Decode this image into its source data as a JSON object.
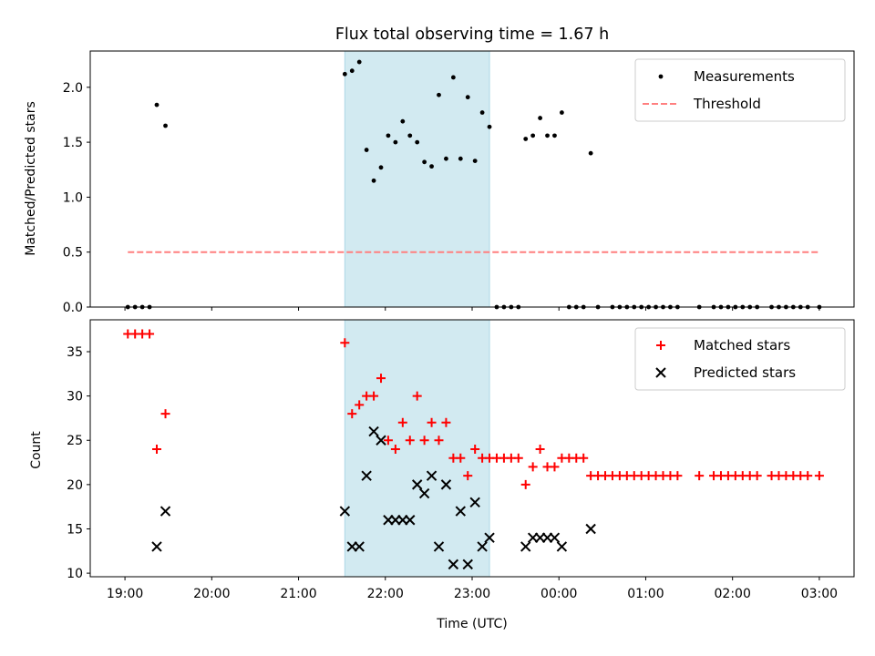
{
  "title": "Flux total observing time = 1.67 h",
  "shaded_interval": {
    "start": "21:32",
    "end": "23:12",
    "color": "#add8e6"
  },
  "chart_data": [
    {
      "type": "scatter",
      "ylabel": "Matched/Predicted stars",
      "ylim": [
        0,
        2.33
      ],
      "yticks": [
        0.0,
        0.5,
        1.0,
        1.5,
        2.0
      ],
      "ytick_labels": [
        "0.0",
        "0.5",
        "1.0",
        "1.5",
        "2.0"
      ],
      "grid": false,
      "legend": {
        "placement": "top-right"
      },
      "series": [
        {
          "name": "Measurements",
          "kind": "points",
          "color": "#000000",
          "points": [
            [
              "19:02",
              0
            ],
            [
              "19:07",
              0
            ],
            [
              "19:12",
              0
            ],
            [
              "19:17",
              0
            ],
            [
              "19:22",
              1.84
            ],
            [
              "19:28",
              1.65
            ],
            [
              "21:32",
              2.12
            ],
            [
              "21:37",
              2.15
            ],
            [
              "21:42",
              2.23
            ],
            [
              "21:47",
              1.43
            ],
            [
              "21:52",
              1.15
            ],
            [
              "21:57",
              1.27
            ],
            [
              "22:02",
              1.56
            ],
            [
              "22:07",
              1.5
            ],
            [
              "22:12",
              1.69
            ],
            [
              "22:17",
              1.56
            ],
            [
              "22:22",
              1.5
            ],
            [
              "22:27",
              1.32
            ],
            [
              "22:32",
              1.28
            ],
            [
              "22:37",
              1.93
            ],
            [
              "22:42",
              1.35
            ],
            [
              "22:47",
              2.09
            ],
            [
              "22:52",
              1.35
            ],
            [
              "22:57",
              1.91
            ],
            [
              "23:02",
              1.33
            ],
            [
              "23:07",
              1.77
            ],
            [
              "23:12",
              1.64
            ],
            [
              "23:17",
              0
            ],
            [
              "23:22",
              0
            ],
            [
              "23:27",
              0
            ],
            [
              "23:32",
              0
            ],
            [
              "23:37",
              1.53
            ],
            [
              "23:42",
              1.56
            ],
            [
              "23:47",
              1.72
            ],
            [
              "23:52",
              1.56
            ],
            [
              "23:57",
              1.56
            ],
            [
              "00:02",
              1.77
            ],
            [
              "00:07",
              0
            ],
            [
              "00:12",
              0
            ],
            [
              "00:17",
              0
            ],
            [
              "00:22",
              1.4
            ],
            [
              "00:27",
              0
            ],
            [
              "00:37",
              0
            ],
            [
              "00:42",
              0
            ],
            [
              "00:47",
              0
            ],
            [
              "00:52",
              0
            ],
            [
              "00:57",
              0
            ],
            [
              "01:02",
              0
            ],
            [
              "01:07",
              0
            ],
            [
              "01:12",
              0
            ],
            [
              "01:17",
              0
            ],
            [
              "01:22",
              0
            ],
            [
              "01:37",
              0
            ],
            [
              "01:47",
              0
            ],
            [
              "01:52",
              0
            ],
            [
              "01:57",
              0
            ],
            [
              "02:02",
              0
            ],
            [
              "02:07",
              0
            ],
            [
              "02:12",
              0
            ],
            [
              "02:17",
              0
            ],
            [
              "02:27",
              0
            ],
            [
              "02:32",
              0
            ],
            [
              "02:37",
              0
            ],
            [
              "02:42",
              0
            ],
            [
              "02:47",
              0
            ],
            [
              "02:52",
              0
            ],
            [
              "03:00",
              0
            ]
          ]
        },
        {
          "name": "Threshold",
          "kind": "dashed-line",
          "color": "#ff7f7f",
          "points": [
            [
              "19:02",
              0.5
            ],
            [
              "03:00",
              0.5
            ]
          ]
        }
      ]
    },
    {
      "type": "scatter",
      "xlabel": "Time (UTC)",
      "ylabel": "Count",
      "ylim": [
        9.6,
        38.6
      ],
      "yticks": [
        10,
        15,
        20,
        25,
        30,
        35
      ],
      "ytick_labels": [
        "10",
        "15",
        "20",
        "25",
        "30",
        "35"
      ],
      "xticks": [
        "19:00",
        "20:00",
        "21:00",
        "22:00",
        "23:00",
        "00:00",
        "01:00",
        "02:00",
        "03:00"
      ],
      "xlim": [
        "18:36",
        "03:24"
      ],
      "grid": false,
      "legend": {
        "placement": "top-right"
      },
      "series": [
        {
          "name": "Matched stars",
          "kind": "plus",
          "color": "#ff0000",
          "points": [
            [
              "19:02",
              37
            ],
            [
              "19:07",
              37
            ],
            [
              "19:12",
              37
            ],
            [
              "19:17",
              37
            ],
            [
              "19:22",
              24
            ],
            [
              "19:28",
              28
            ],
            [
              "21:32",
              36
            ],
            [
              "21:37",
              28
            ],
            [
              "21:42",
              29
            ],
            [
              "21:47",
              30
            ],
            [
              "21:52",
              30
            ],
            [
              "21:57",
              32
            ],
            [
              "22:02",
              25
            ],
            [
              "22:07",
              24
            ],
            [
              "22:12",
              27
            ],
            [
              "22:17",
              25
            ],
            [
              "22:22",
              30
            ],
            [
              "22:27",
              25
            ],
            [
              "22:32",
              27
            ],
            [
              "22:37",
              25
            ],
            [
              "22:42",
              27
            ],
            [
              "22:47",
              23
            ],
            [
              "22:52",
              23
            ],
            [
              "22:57",
              21
            ],
            [
              "23:02",
              24
            ],
            [
              "23:07",
              23
            ],
            [
              "23:12",
              23
            ],
            [
              "23:17",
              23
            ],
            [
              "23:22",
              23
            ],
            [
              "23:27",
              23
            ],
            [
              "23:32",
              23
            ],
            [
              "23:37",
              20
            ],
            [
              "23:42",
              22
            ],
            [
              "23:47",
              24
            ],
            [
              "23:52",
              22
            ],
            [
              "23:57",
              22
            ],
            [
              "00:02",
              23
            ],
            [
              "00:07",
              23
            ],
            [
              "00:12",
              23
            ],
            [
              "00:17",
              23
            ],
            [
              "00:22",
              21
            ],
            [
              "00:27",
              21
            ],
            [
              "00:32",
              21
            ],
            [
              "00:37",
              21
            ],
            [
              "00:42",
              21
            ],
            [
              "00:47",
              21
            ],
            [
              "00:52",
              21
            ],
            [
              "00:57",
              21
            ],
            [
              "01:02",
              21
            ],
            [
              "01:07",
              21
            ],
            [
              "01:12",
              21
            ],
            [
              "01:17",
              21
            ],
            [
              "01:22",
              21
            ],
            [
              "01:37",
              21
            ],
            [
              "01:47",
              21
            ],
            [
              "01:52",
              21
            ],
            [
              "01:57",
              21
            ],
            [
              "02:02",
              21
            ],
            [
              "02:07",
              21
            ],
            [
              "02:12",
              21
            ],
            [
              "02:17",
              21
            ],
            [
              "02:27",
              21
            ],
            [
              "02:32",
              21
            ],
            [
              "02:37",
              21
            ],
            [
              "02:42",
              21
            ],
            [
              "02:47",
              21
            ],
            [
              "02:52",
              21
            ],
            [
              "03:00",
              21
            ]
          ]
        },
        {
          "name": "Predicted stars",
          "kind": "x",
          "color": "#000000",
          "points": [
            [
              "19:22",
              13
            ],
            [
              "19:28",
              17
            ],
            [
              "21:32",
              17
            ],
            [
              "21:37",
              13
            ],
            [
              "21:42",
              13
            ],
            [
              "21:47",
              21
            ],
            [
              "21:52",
              26
            ],
            [
              "21:57",
              25
            ],
            [
              "22:02",
              16
            ],
            [
              "22:07",
              16
            ],
            [
              "22:12",
              16
            ],
            [
              "22:17",
              16
            ],
            [
              "22:22",
              20
            ],
            [
              "22:27",
              19
            ],
            [
              "22:32",
              21
            ],
            [
              "22:37",
              13
            ],
            [
              "22:42",
              20
            ],
            [
              "22:47",
              11
            ],
            [
              "22:52",
              17
            ],
            [
              "22:57",
              11
            ],
            [
              "23:02",
              18
            ],
            [
              "23:07",
              13
            ],
            [
              "23:12",
              14
            ],
            [
              "23:37",
              13
            ],
            [
              "23:42",
              14
            ],
            [
              "23:47",
              14
            ],
            [
              "23:52",
              14
            ],
            [
              "23:57",
              14
            ],
            [
              "00:02",
              13
            ],
            [
              "00:22",
              15
            ]
          ]
        }
      ]
    }
  ]
}
